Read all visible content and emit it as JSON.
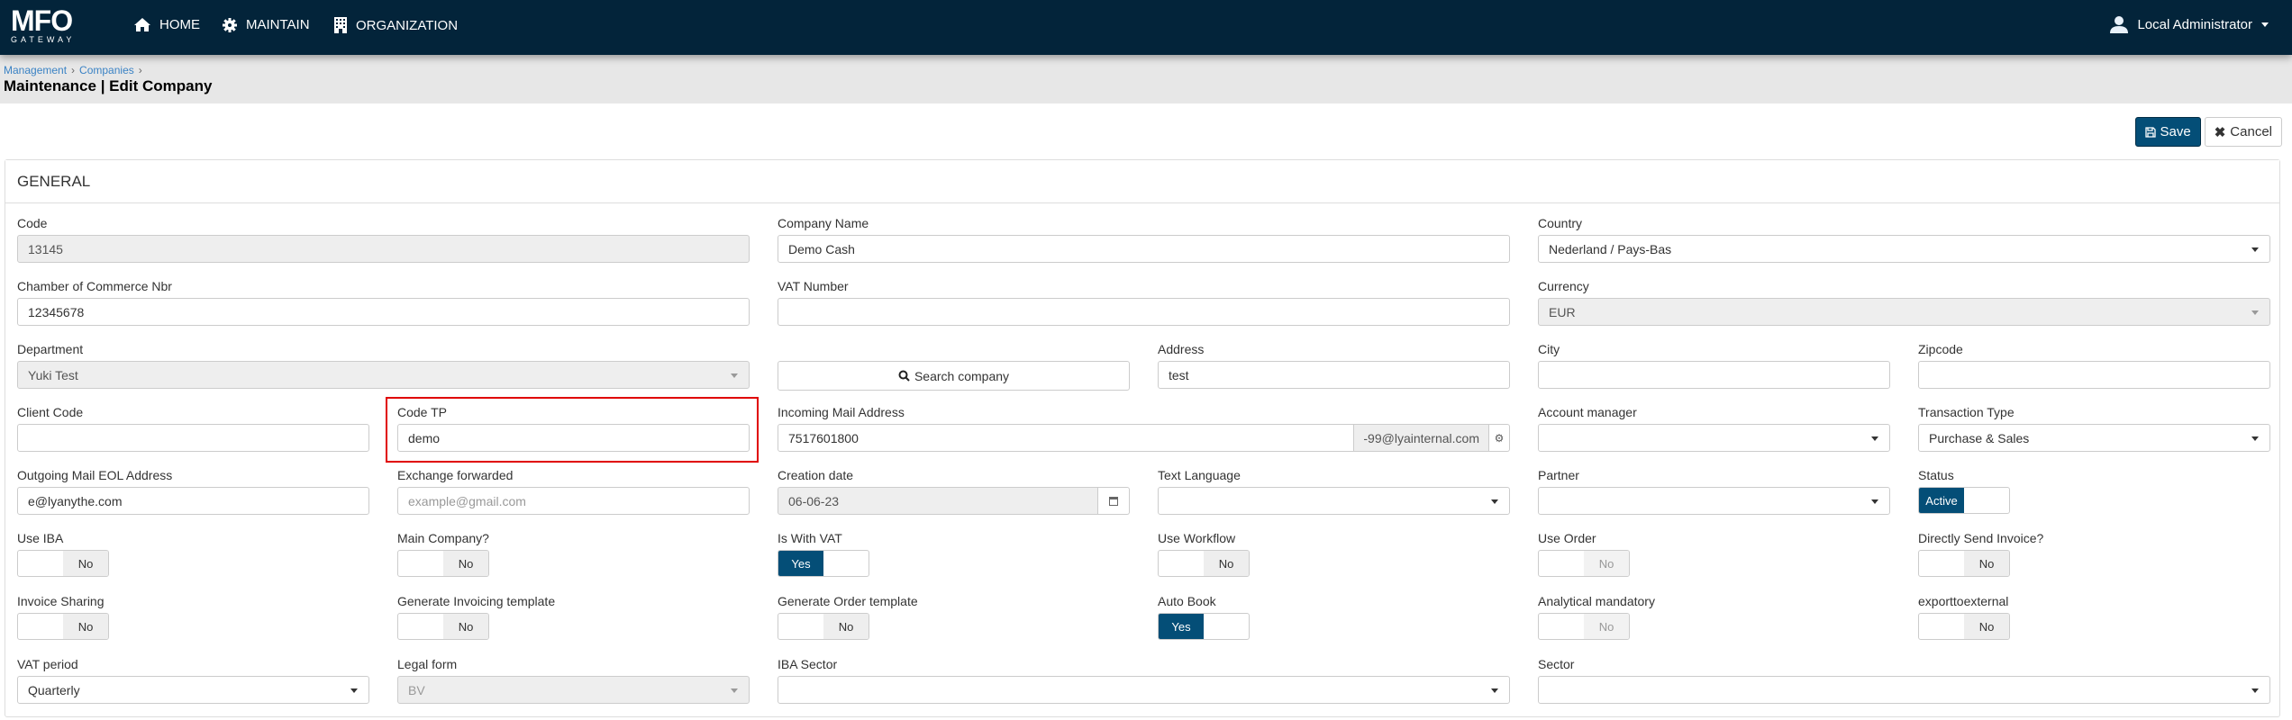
{
  "nav": {
    "logo_text": "MFO",
    "logo_sub": "GATEWAY",
    "items": [
      {
        "label": "HOME",
        "icon": "home-icon"
      },
      {
        "label": "MAINTAIN",
        "icon": "gear-icon"
      },
      {
        "label": "ORGANIZATION",
        "icon": "building-icon"
      }
    ],
    "user": "Local Administrator"
  },
  "breadcrumb": [
    "Management",
    "Companies"
  ],
  "page_title": "Maintenance | Edit Company",
  "actions": {
    "save": "Save",
    "cancel": "Cancel"
  },
  "section": "GENERAL",
  "colors": {
    "navbar": "#03243a",
    "primary": "#044e77",
    "highlight": "#e00000"
  },
  "fields": {
    "code": {
      "label": "Code",
      "value": "13145"
    },
    "company_name": {
      "label": "Company Name",
      "value": "Demo Cash"
    },
    "country": {
      "label": "Country",
      "value": "Nederland / Pays-Bas"
    },
    "chamber": {
      "label": "Chamber of Commerce Nbr",
      "value": "12345678"
    },
    "vat_number": {
      "label": "VAT Number",
      "value": ""
    },
    "currency": {
      "label": "Currency",
      "value": "EUR"
    },
    "department": {
      "label": "Department",
      "value": "Yuki Test"
    },
    "search_company": {
      "label": "Search company"
    },
    "address": {
      "label": "Address",
      "value": "test"
    },
    "city": {
      "label": "City",
      "value": ""
    },
    "zipcode": {
      "label": "Zipcode",
      "value": ""
    },
    "client_code": {
      "label": "Client Code",
      "value": ""
    },
    "code_tp": {
      "label": "Code TP",
      "value": "demo"
    },
    "incoming_mail": {
      "label": "Incoming Mail Address",
      "value": "7517601800",
      "suffix": "-99@lyainternal.com"
    },
    "account_manager": {
      "label": "Account manager",
      "value": ""
    },
    "transaction_type": {
      "label": "Transaction Type",
      "value": "Purchase & Sales"
    },
    "outgoing_mail": {
      "label": "Outgoing Mail EOL Address",
      "value": "e@lyanythe.com"
    },
    "exchange_forwarded": {
      "label": "Exchange forwarded",
      "placeholder": "example@gmail.com"
    },
    "creation_date": {
      "label": "Creation date",
      "value": "06-06-23"
    },
    "text_language": {
      "label": "Text Language",
      "value": ""
    },
    "partner": {
      "label": "Partner",
      "value": ""
    },
    "status": {
      "label": "Status",
      "value": "Active"
    },
    "use_iba": {
      "label": "Use IBA",
      "value": "No"
    },
    "main_company": {
      "label": "Main Company?",
      "value": "No"
    },
    "is_with_vat": {
      "label": "Is With VAT",
      "value": "Yes"
    },
    "use_workflow": {
      "label": "Use Workflow",
      "value": "No"
    },
    "use_order": {
      "label": "Use Order",
      "value": "No"
    },
    "directly_send": {
      "label": "Directly Send Invoice?",
      "value": "No"
    },
    "invoice_sharing": {
      "label": "Invoice Sharing",
      "value": "No"
    },
    "gen_invoicing": {
      "label": "Generate Invoicing template",
      "value": "No"
    },
    "gen_order": {
      "label": "Generate Order template",
      "value": "No"
    },
    "auto_book": {
      "label": "Auto Book",
      "value": "Yes"
    },
    "analytical": {
      "label": "Analytical mandatory",
      "value": "No"
    },
    "export_external": {
      "label": "exporttoexternal",
      "value": "No"
    },
    "vat_period": {
      "label": "VAT period",
      "value": "Quarterly"
    },
    "legal_form": {
      "label": "Legal form",
      "value": "BV"
    },
    "iba_sector": {
      "label": "IBA Sector",
      "value": ""
    },
    "sector": {
      "label": "Sector",
      "value": ""
    }
  }
}
